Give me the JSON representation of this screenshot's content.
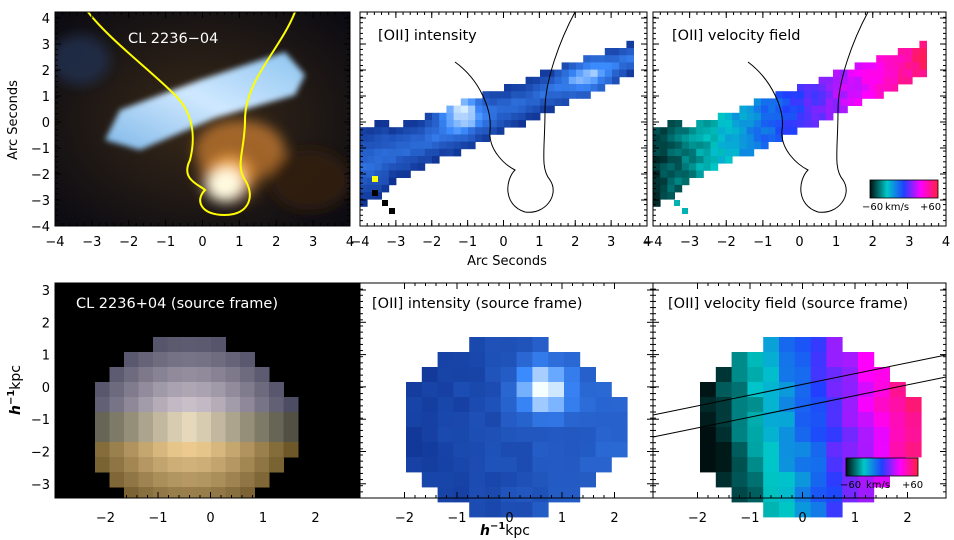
{
  "panels": {
    "top_image_title": "CL 2236−04",
    "top_intensity_title": "[OII] intensity",
    "top_velocity_title": "[OII] velocity field",
    "bottom_image_title": "CL 2236+04 (source frame)",
    "bottom_intensity_title": "[OII] intensity (source frame)",
    "bottom_velocity_title": "[OII] velocity field (source frame)"
  },
  "axes": {
    "top_ylabel": "Arc Seconds",
    "top_xlabel": "Arc Seconds",
    "bottom_ylabel_prefix": "h",
    "bottom_ylabel_exp": "−1",
    "bottom_ylabel_unit": "kpc",
    "bottom_xlabel_prefix": "h",
    "bottom_xlabel_exp": "−1",
    "bottom_xlabel_unit": "kpc",
    "top_x_ticks": [
      "−4",
      "−3",
      "−2",
      "−1",
      "0",
      "1",
      "2",
      "3",
      "4"
    ],
    "top_y_ticks": [
      "4",
      "3",
      "2",
      "1",
      "0",
      "−1",
      "−2",
      "−3",
      "−4"
    ],
    "bottom_x_ticks": [
      "−2",
      "−1",
      "0",
      "1",
      "2"
    ],
    "bottom_y_ticks": [
      "3",
      "2",
      "1",
      "0",
      "−1",
      "−2",
      "−3"
    ]
  },
  "colorbar": {
    "min_label": "−60",
    "unit_label": "km/s",
    "max_label": "+60",
    "colors": [
      "#001010",
      "#00c8c8",
      "#2040ff",
      "#ff00ff",
      "#ff2040"
    ]
  },
  "colors": {
    "critical_line_image": "#ffff00",
    "critical_line_map": "#000000",
    "frame": "#000000"
  }
}
